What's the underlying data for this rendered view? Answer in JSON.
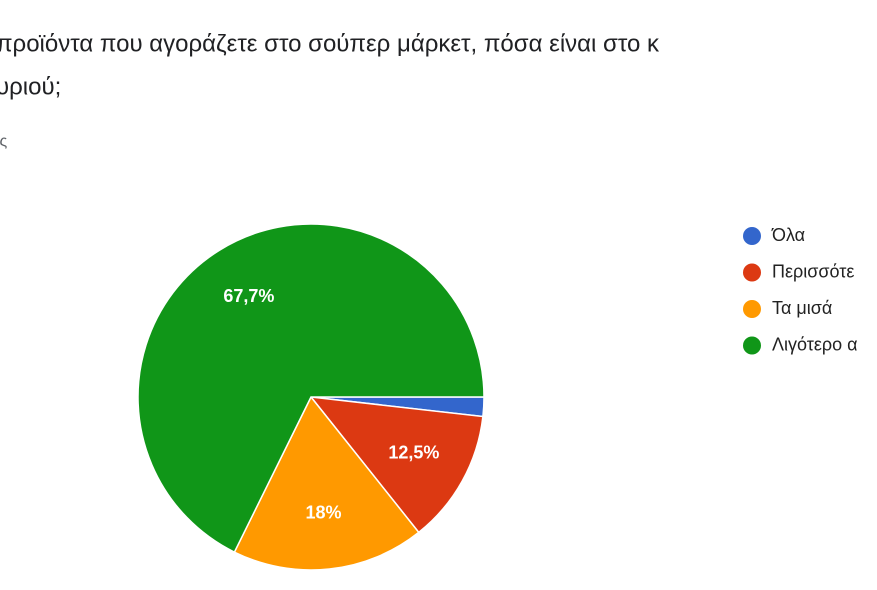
{
  "header": {
    "title_line1": "προϊόντα που αγοράζετε στο σούπερ μάρκετ, πόσα είναι στο κ",
    "title_line2": "υριού;",
    "responses": "ις"
  },
  "chart_data": {
    "type": "pie",
    "categories": [
      "Όλα",
      "Περισσότε",
      "Τα μισά",
      "Λιγότερο α"
    ],
    "values": [
      1.8,
      12.5,
      18,
      67.7
    ],
    "value_labels": [
      null,
      "12,5%",
      "18%",
      "67,7%"
    ],
    "colors": [
      "#3366cc",
      "#dc3912",
      "#ff9900",
      "#109618"
    ],
    "legend": "right"
  }
}
